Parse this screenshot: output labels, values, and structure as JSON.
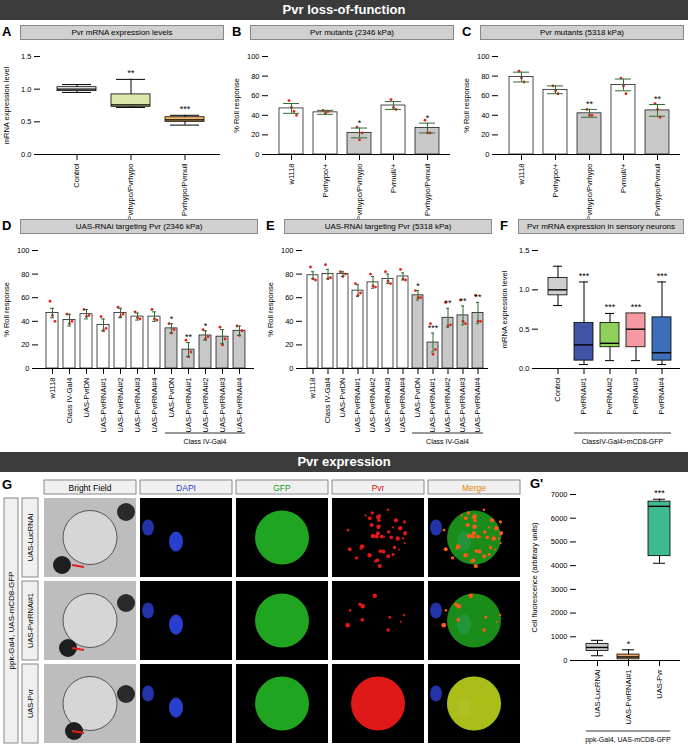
{
  "sections": [
    "Pvr loss-of-function",
    "Pvr expression"
  ],
  "chart_data": [
    {
      "panel": "A",
      "type": "box",
      "title": "Pvr mRNA expression levels",
      "y_label": "mRNA expression level",
      "categories": [
        "Control",
        "Pvrhypo/Pvrhypo",
        "Pvrhypo/Pvrnull"
      ],
      "boxes": [
        {
          "min": 0.95,
          "q1": 0.97,
          "median": 1.0,
          "q3": 1.03,
          "max": 1.07
        },
        {
          "min": 0.72,
          "q1": 0.73,
          "median": 0.76,
          "q3": 0.92,
          "max": 1.15
        },
        {
          "min": 0.45,
          "q1": 0.5,
          "median": 0.53,
          "q3": 0.57,
          "max": 0.6
        }
      ],
      "colors": [
        "#f2f2f2",
        "#d9e8a8",
        "#f5b86a"
      ],
      "significance": [
        null,
        "**",
        "***"
      ],
      "ylim": [
        0,
        1.5
      ],
      "yticks": [
        {
          "value": 0,
          "label": "0.0"
        },
        {
          "value": 0.5,
          "label": "0.5"
        },
        {
          "value": 1,
          "label": "1.0"
        },
        {
          "value": 1.5,
          "label": "1.5"
        }
      ]
    },
    {
      "panel": "B",
      "type": "bar",
      "title": "Pvr mutants (2346 kPa)",
      "y_label": "% Roll response",
      "categories": [
        "w1118",
        "Pvrhypo/+",
        "Pvrhypo/Pvrhypo",
        "Pvrnull/+",
        "Pvrhypo/Pvrnull"
      ],
      "values": [
        47,
        43,
        22,
        50,
        27
      ],
      "errors": [
        5,
        2,
        5,
        4,
        5
      ],
      "points": [
        [
          55,
          48,
          44,
          40
        ],
        [
          45,
          42,
          44
        ],
        [
          28,
          15,
          22
        ],
        [
          56,
          48,
          46
        ],
        [
          35,
          22,
          22
        ]
      ],
      "colors": [
        "#ffffff",
        "#ffffff",
        "#c8c8c8",
        "#ffffff",
        "#c8c8c8"
      ],
      "significance": [
        null,
        null,
        "*",
        null,
        "*"
      ],
      "ylim": [
        0,
        100
      ],
      "yticks": [
        0,
        20,
        40,
        60,
        80,
        100
      ]
    },
    {
      "panel": "C",
      "type": "bar",
      "title": "Pvr mutants (5318 kPa)",
      "y_label": "% Roll response",
      "categories": [
        "w1118",
        "Pvrhypo/+",
        "Pvrhypo/Pvrhypo",
        "Pvrnull/+",
        "Pvrhypo/Pvrnull"
      ],
      "values": [
        79,
        66,
        42,
        71,
        45
      ],
      "errors": [
        5,
        4,
        4,
        6,
        6
      ],
      "points": [
        [
          85,
          78,
          74
        ],
        [
          70,
          65,
          62
        ],
        [
          46,
          40,
          40
        ],
        [
          78,
          70,
          62
        ],
        [
          52,
          46,
          38
        ]
      ],
      "colors": [
        "#ffffff",
        "#ffffff",
        "#c8c8c8",
        "#ffffff",
        "#c8c8c8"
      ],
      "significance": [
        null,
        null,
        "**",
        null,
        "**"
      ],
      "ylim": [
        0,
        100
      ],
      "yticks": [
        0,
        20,
        40,
        60,
        80,
        100
      ]
    },
    {
      "panel": "D",
      "type": "bar",
      "title": "UAS-RNAi targeting Pvr (2346 kPa)",
      "y_label": "% Roll response",
      "categories": [
        "w1118",
        "Class IV-Gal4",
        "UAS-PvrDN",
        "UAS-PvrRNAi#1",
        "UAS-PvrRNAi#2",
        "UAS-PvrRNAi#3",
        "UAS-PvrRNAi#4",
        "UAS-PvrDN",
        "UAS-PvrRNAi#1",
        "UAS-PvrRNAi#2",
        "UAS-PvrRNAi#3",
        "UAS-PvrRNAi#4"
      ],
      "values": [
        47,
        41,
        46,
        37,
        47,
        44,
        44,
        34,
        16,
        28,
        27,
        32
      ],
      "errors": [
        4,
        5,
        4,
        5,
        4,
        3,
        4,
        4,
        6,
        4,
        6,
        4
      ],
      "points": [
        [
          57,
          45,
          40
        ],
        [
          46,
          38,
          40
        ],
        [
          50,
          44,
          45
        ],
        [
          44,
          32,
          34
        ],
        [
          52,
          44,
          46
        ],
        [
          48,
          43,
          42
        ],
        [
          50,
          42,
          41
        ],
        [
          38,
          30,
          33
        ],
        [
          24,
          10,
          14
        ],
        [
          33,
          25,
          27
        ],
        [
          35,
          20,
          25
        ],
        [
          36,
          28,
          32
        ]
      ],
      "colors": [
        "#ffffff",
        "#ffffff",
        "#ffffff",
        "#ffffff",
        "#ffffff",
        "#ffffff",
        "#ffffff",
        "#c8c8c8",
        "#c8c8c8",
        "#c8c8c8",
        "#c8c8c8",
        "#c8c8c8"
      ],
      "significance": [
        null,
        null,
        null,
        null,
        null,
        null,
        null,
        "*",
        "**",
        "*",
        null,
        null
      ],
      "group_label": "Class IV-Gal4",
      "group_range": [
        7,
        11
      ],
      "ylim": [
        0,
        100
      ],
      "yticks": [
        0,
        20,
        40,
        60,
        80,
        100
      ]
    },
    {
      "panel": "E",
      "type": "bar",
      "title": "UAS-RNAi targeting Pvr (5318 kPa)",
      "y_label": "% Roll response",
      "categories": [
        "w1118",
        "Class IV-Gal4",
        "UAS-PvrDN",
        "UAS-PvrRNAi#1",
        "UAS-PvrRNAi#2",
        "UAS-PvrRNAi#3",
        "UAS-PvrRNAi#4",
        "UAS-PvrDN",
        "UAS-PvrRNAi#1",
        "UAS-PvrRNAi#2",
        "UAS-PvrRNAi#3",
        "UAS-PvrRNAi#4"
      ],
      "values": [
        79,
        80,
        80,
        66,
        73,
        76,
        78,
        62,
        22,
        43,
        45,
        47
      ],
      "errors": [
        3,
        4,
        2,
        5,
        5,
        4,
        3,
        4,
        8,
        8,
        8,
        9
      ],
      "points": [
        [
          86,
          76,
          75
        ],
        [
          88,
          76,
          77
        ],
        [
          82,
          78,
          80
        ],
        [
          72,
          62,
          64
        ],
        [
          80,
          70,
          69
        ],
        [
          82,
          74,
          72
        ],
        [
          84,
          76,
          75
        ],
        [
          66,
          60,
          60
        ],
        [
          38,
          12,
          16
        ],
        [
          56,
          36,
          37
        ],
        [
          58,
          40,
          38
        ],
        [
          62,
          40,
          40
        ]
      ],
      "colors": [
        "#ffffff",
        "#ffffff",
        "#ffffff",
        "#ffffff",
        "#ffffff",
        "#ffffff",
        "#ffffff",
        "#c8c8c8",
        "#c8c8c8",
        "#c8c8c8",
        "#c8c8c8",
        "#c8c8c8"
      ],
      "significance": [
        null,
        null,
        null,
        null,
        null,
        null,
        null,
        "*",
        "***",
        "**",
        "**",
        "**"
      ],
      "group_label": "Class IV-Gal4",
      "group_range": [
        7,
        11
      ],
      "ylim": [
        0,
        100
      ],
      "yticks": [
        0,
        20,
        40,
        60,
        80,
        100
      ]
    },
    {
      "panel": "F",
      "type": "box",
      "title": "Pvr mRNA expression in sensory neurons",
      "y_label": "mRNA expression level",
      "categories": [
        "Control",
        "PvrRNAi#1",
        "PvrRNAi#2",
        "PvrRNAi#3",
        "PvrRNAi#4"
      ],
      "boxes": [
        {
          "min": 0.8,
          "q1": 0.93,
          "median": 1.0,
          "q3": 1.15,
          "max": 1.3
        },
        {
          "min": 0.05,
          "q1": 0.1,
          "median": 0.3,
          "q3": 0.58,
          "max": 1.1
        },
        {
          "min": 0.1,
          "q1": 0.27,
          "median": 0.32,
          "q3": 0.58,
          "max": 0.7
        },
        {
          "min": 0.1,
          "q1": 0.27,
          "median": 0.5,
          "q3": 0.7,
          "max": 0.7
        },
        {
          "min": 0.05,
          "q1": 0.1,
          "median": 0.2,
          "q3": 0.65,
          "max": 1.1
        }
      ],
      "colors": [
        "#cfcfcf",
        "#4054a8",
        "#8fd05a",
        "#f49aa0",
        "#3d6fb8"
      ],
      "significance": [
        null,
        "***",
        "***",
        "***",
        "***"
      ],
      "group_label": "ClassIV-Gal4>mCD8-GFP",
      "group_range": [
        1,
        4
      ],
      "ylim": [
        0,
        1.5
      ],
      "yticks": [
        {
          "value": 0,
          "label": "0.0"
        },
        {
          "value": 0.5,
          "label": "0.5"
        },
        {
          "value": 1,
          "label": "1.0"
        },
        {
          "value": 1.5,
          "label": "1.5"
        }
      ]
    },
    {
      "panel": "G'",
      "type": "box",
      "y_label": "Cell fluorescence (arbitrary units)",
      "categories": [
        "UAS-LucRNAi",
        "UAS-PvrRNAi#1",
        "UAS-Pvr"
      ],
      "boxes": [
        {
          "min": 200,
          "q1": 400,
          "median": 550,
          "q3": 700,
          "max": 850
        },
        {
          "min": 0,
          "q1": 50,
          "median": 150,
          "q3": 250,
          "max": 450
        },
        {
          "min": 4100,
          "q1": 4400,
          "median": 6500,
          "q3": 6700,
          "max": 6800
        }
      ],
      "colors": [
        "#c8c8c8",
        "#f0a86a",
        "#3dbb8f"
      ],
      "significance": [
        null,
        "*",
        "***"
      ],
      "group_label": "ppk-Gal4, UAS-mCD8-GFP",
      "group_range": [
        0,
        2
      ],
      "ylim": [
        0,
        7000
      ],
      "yticks": [
        0,
        1000,
        2000,
        3000,
        4000,
        5000,
        6000,
        7000
      ]
    }
  ],
  "panel_G": {
    "panel": "G",
    "columns": [
      "Bright Field",
      "DAPI",
      "GFP",
      "Pvr",
      "Merge"
    ],
    "rows": [
      "UAS-LucRNAi",
      "UAS-PvrRNAi#1",
      "UAS-Pvr"
    ],
    "side_label": "ppk-Gal4, UAS-mCD8-GFP"
  }
}
